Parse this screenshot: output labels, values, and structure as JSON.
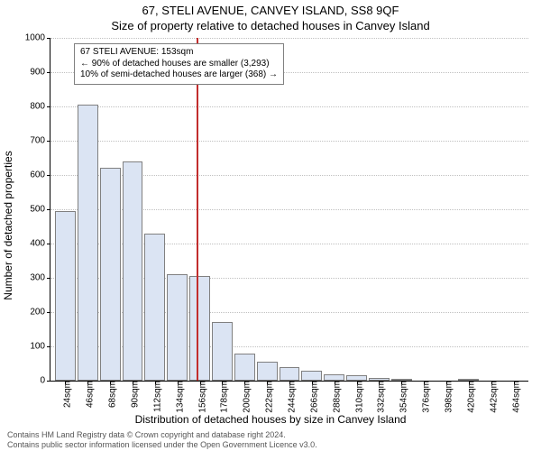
{
  "titles": {
    "line1": "67, STELI AVENUE, CANVEY ISLAND, SS8 9QF",
    "line2": "Size of property relative to detached houses in Canvey Island"
  },
  "axes": {
    "ylabel": "Number of detached properties",
    "xlabel": "Distribution of detached houses by size in Canvey Island",
    "ylim": [
      0,
      1000
    ],
    "ytick_step": 100,
    "grid_color": "#c0c0c0",
    "bar_fill": "#dbe4f3",
    "bar_border": "#808080"
  },
  "chart": {
    "type": "histogram",
    "x_start": 24,
    "x_step": 22,
    "x_unit": "sqm",
    "n_bars": 21,
    "values": [
      495,
      805,
      620,
      640,
      430,
      310,
      305,
      170,
      80,
      55,
      40,
      30,
      18,
      15,
      8,
      5,
      0,
      0,
      3,
      0,
      0
    ],
    "marker_value": 153,
    "marker_color": "#c22d2d"
  },
  "annotation": {
    "line1": "67 STELI AVENUE: 153sqm",
    "line2": "← 90% of detached houses are smaller (3,293)",
    "line3": "10% of semi-detached houses are larger (368) →"
  },
  "footer": {
    "line1": "Contains HM Land Registry data © Crown copyright and database right 2024.",
    "line2": "Contains public sector information licensed under the Open Government Licence v3.0."
  }
}
